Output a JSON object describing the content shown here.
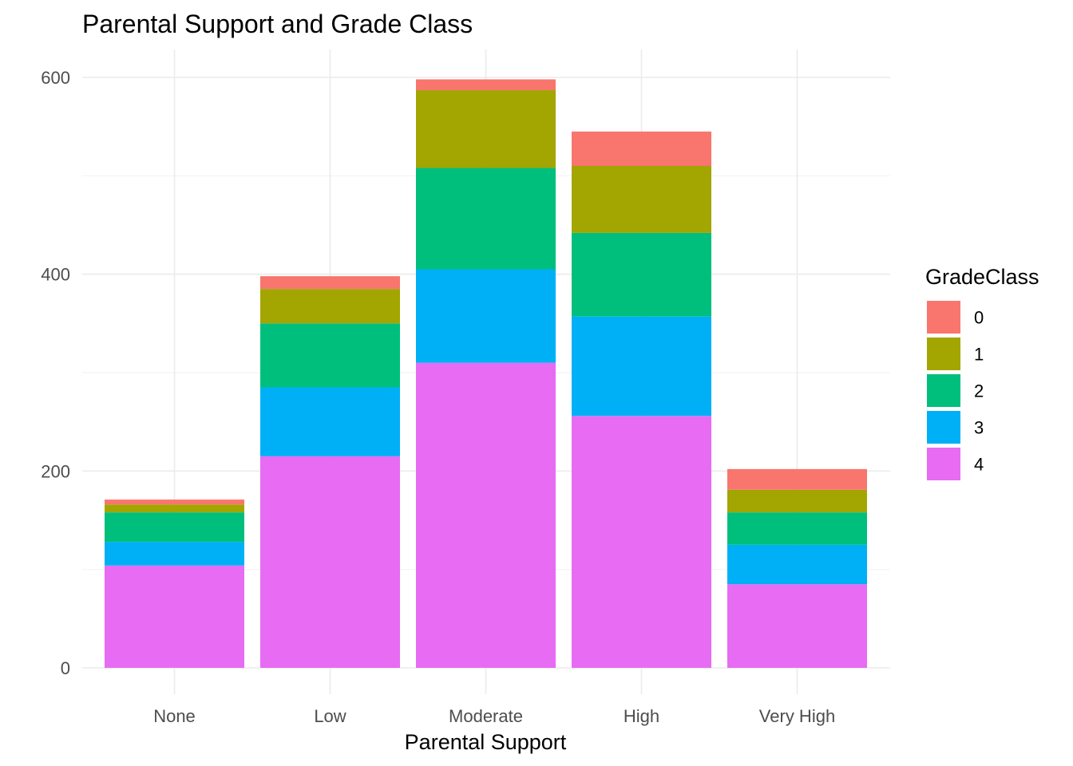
{
  "chart_data": {
    "type": "bar",
    "stacked": true,
    "title": "Parental Support and Grade Class",
    "xlabel": "Parental Support",
    "ylabel": "",
    "categories": [
      "None",
      "Low",
      "Moderate",
      "High",
      "Very High"
    ],
    "ylim": [
      0,
      630
    ],
    "yticks": [
      0,
      200,
      400,
      600
    ],
    "y_minor_ticks": [
      100,
      300,
      500
    ],
    "grid": true,
    "legend": {
      "title": "GradeClass",
      "position": "right"
    },
    "stack_order": [
      "4",
      "3",
      "2",
      "1",
      "0"
    ],
    "series": [
      {
        "name": "0",
        "color": "#F8766D",
        "values": [
          5,
          13,
          11,
          35,
          21
        ]
      },
      {
        "name": "1",
        "color": "#A3A500",
        "values": [
          8,
          35,
          79,
          68,
          23
        ]
      },
      {
        "name": "2",
        "color": "#00BF7D",
        "values": [
          30,
          65,
          103,
          85,
          33
        ]
      },
      {
        "name": "3",
        "color": "#00B0F6",
        "values": [
          24,
          70,
          95,
          101,
          40
        ]
      },
      {
        "name": "4",
        "color": "#E76BF3",
        "values": [
          104,
          215,
          310,
          256,
          85
        ]
      }
    ]
  }
}
